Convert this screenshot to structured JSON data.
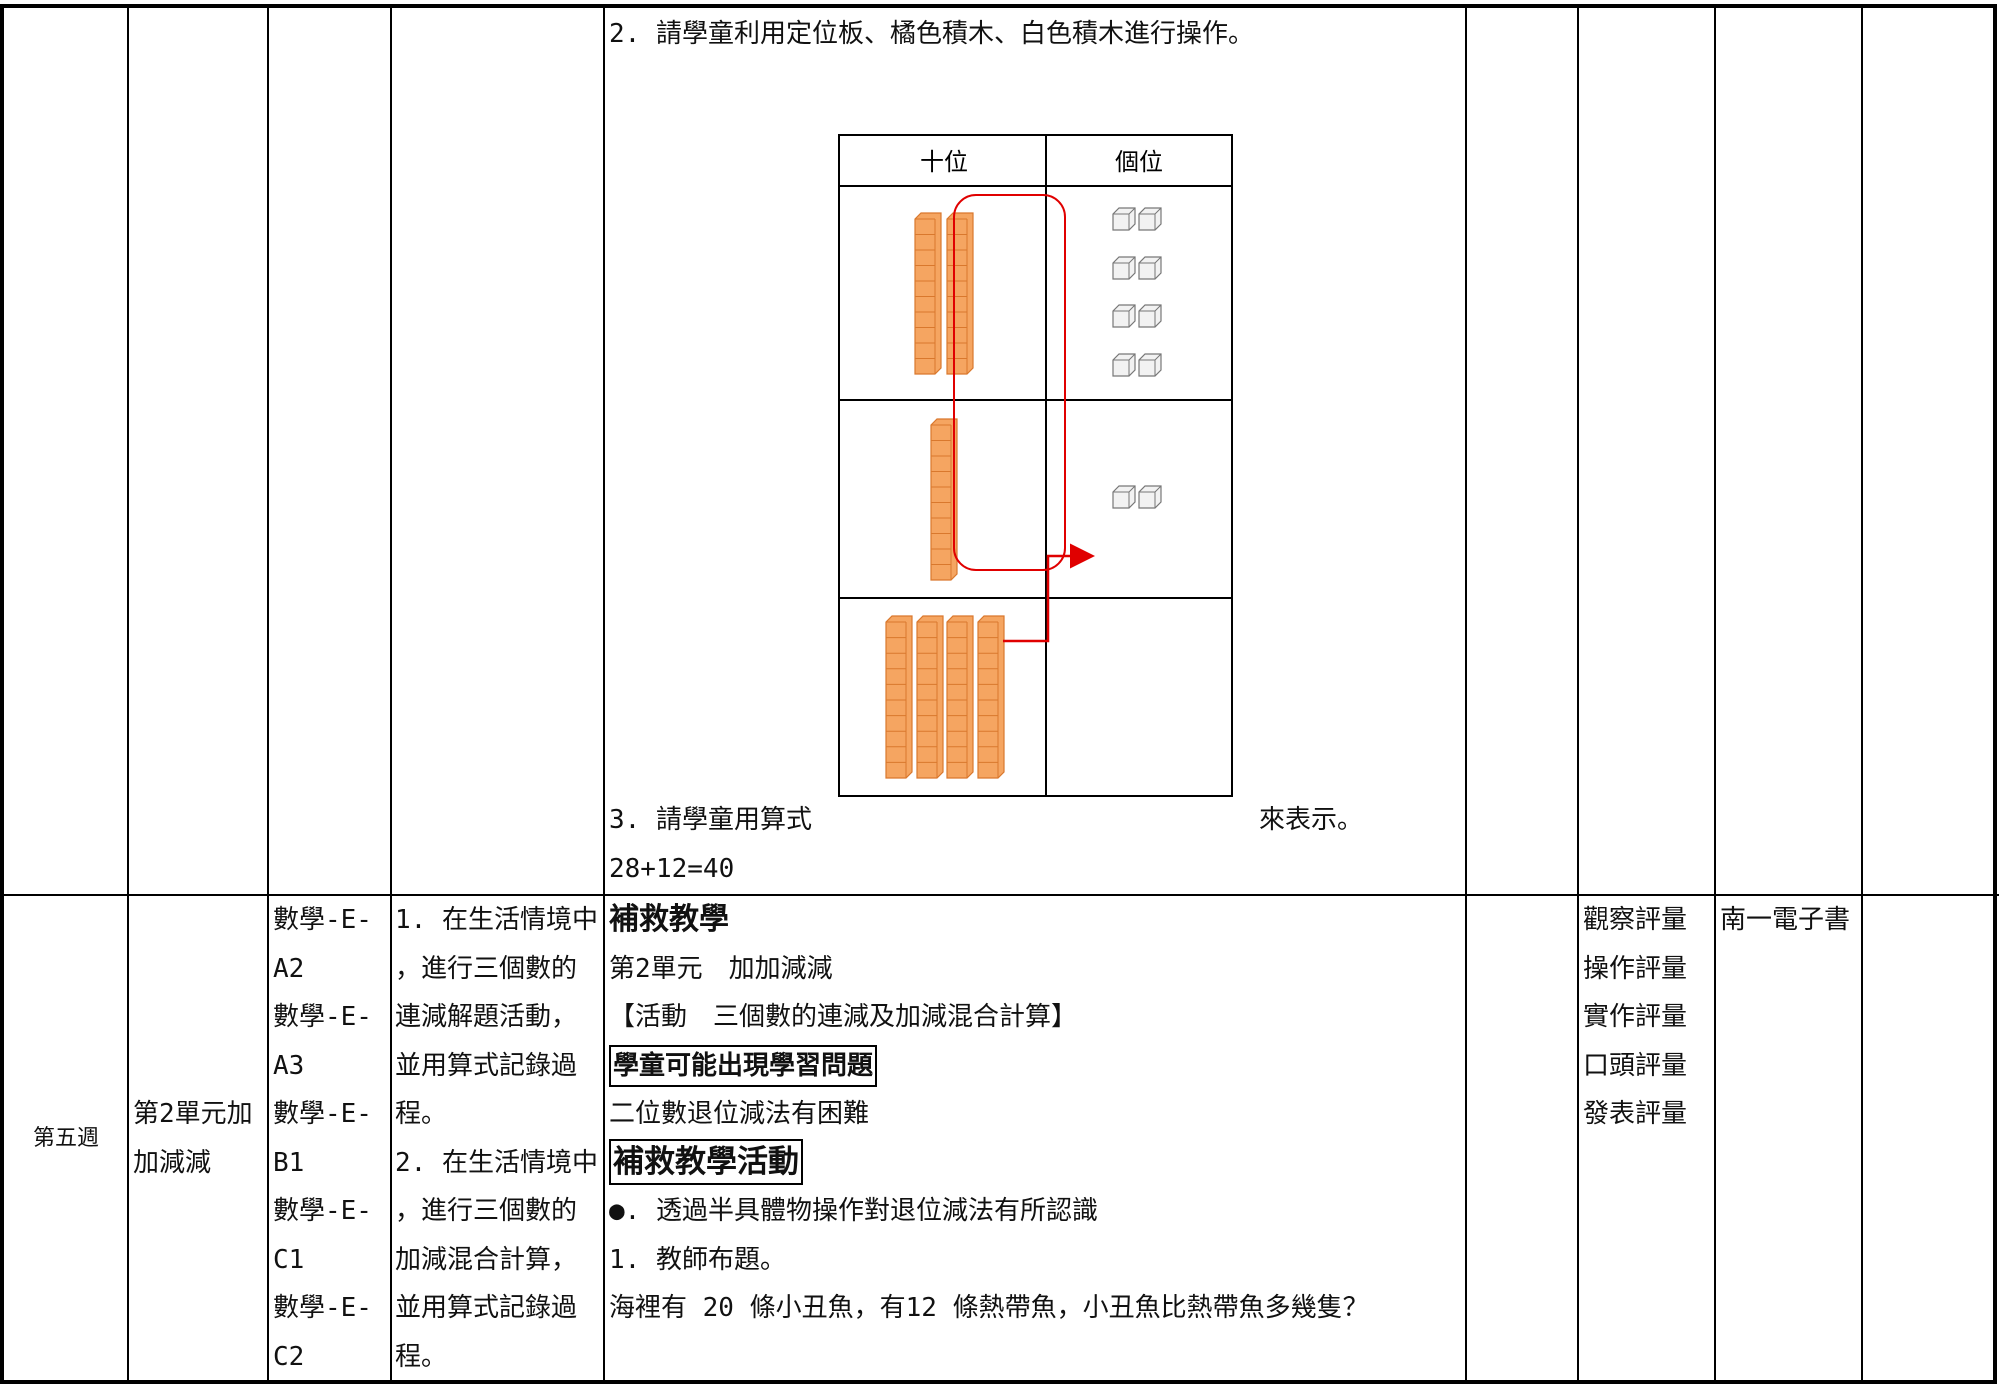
{
  "table": {
    "row1": {
      "instructions": "2. 請學童利用定位板、橘色積木、白色積木進行操作。",
      "place_value_headers": [
        "十位",
        "個位"
      ],
      "formula_prompt": "3. 請學童用算式",
      "formula_suffix": "來表示。",
      "answer": "28+12=40"
    },
    "row2": {
      "week": "第五週",
      "unit_lines": [
        "第2單元加",
        "加減減"
      ],
      "indicator_lines": [
        "數學-E-",
        "A2",
        "數學-E-",
        "A3",
        "數學-E-",
        "B1",
        "數學-E-",
        "C1",
        "數學-E-",
        "C2"
      ],
      "objective_lines": [
        "1. 在生活情境中",
        "，進行三個數的",
        "連減解題活動，",
        "並用算式記錄過",
        "程。",
        "2. 在生活情境中",
        "，進行三個數的",
        "加減混合計算，",
        "並用算式記錄過",
        "程。"
      ],
      "activity": {
        "heading": "補救教學",
        "unit": "第2單元　加加減減",
        "activity_name": "【活動　三個數的連減及加減混合計算】",
        "problem_heading": "學童可能出現學習問題",
        "problem": "二位數退位減法有困難",
        "remedial_heading": "補救教學活動",
        "approach": "●. 透過半具體物操作對退位減法有所認識",
        "step": "1. 教師布題。",
        "question": "海裡有 20 條小丑魚，有12 條熱帶魚，小丑魚比熱帶魚多幾隻？"
      },
      "assessments": [
        "觀察評量",
        "操作評量",
        "實作評量",
        "口頭評量",
        "發表評量"
      ],
      "resources": "南一電子書"
    }
  }
}
